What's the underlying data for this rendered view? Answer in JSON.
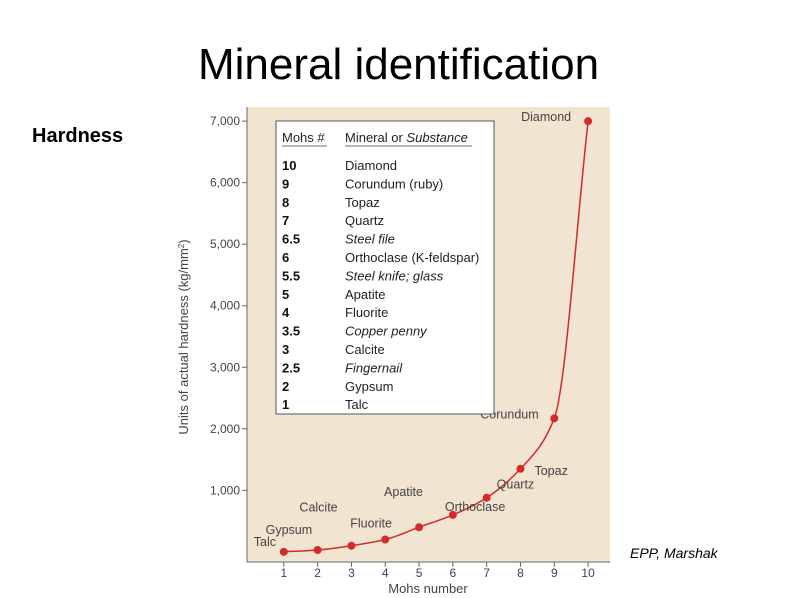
{
  "slide": {
    "title": "Mineral identification",
    "subtitle": "Hardness",
    "credit": "EPP, Marshak"
  },
  "chart_data": {
    "type": "line",
    "xlabel": "Mohs number",
    "ylabel": "Units of actual hardness (kg/mm",
    "ylabel_sup": "2",
    "ylabel_close": ")",
    "xlim": [
      0,
      10.5
    ],
    "ylim": [
      -100,
      7100
    ],
    "x_ticks": [
      "1",
      "2",
      "3",
      "4",
      "5",
      "6",
      "7",
      "8",
      "9",
      "10"
    ],
    "y_ticks": [
      {
        "v": 1000,
        "label": "1,000"
      },
      {
        "v": 2000,
        "label": "2,000"
      },
      {
        "v": 3000,
        "label": "3,000"
      },
      {
        "v": 4000,
        "label": "4,000"
      },
      {
        "v": 5000,
        "label": "5,000"
      },
      {
        "v": 6000,
        "label": "6,000"
      },
      {
        "v": 7000,
        "label": "7,000"
      }
    ],
    "points": [
      {
        "x": 1,
        "y": 0,
        "name": "Talc"
      },
      {
        "x": 2,
        "y": 30,
        "name": "Gypsum"
      },
      {
        "x": 3,
        "y": 100,
        "name": "Calcite"
      },
      {
        "x": 4,
        "y": 200,
        "name": "Fluorite"
      },
      {
        "x": 5,
        "y": 400,
        "name": "Apatite"
      },
      {
        "x": 6,
        "y": 600,
        "name": "Orthoclase"
      },
      {
        "x": 7,
        "y": 880,
        "name": "Quartz"
      },
      {
        "x": 8,
        "y": 1350,
        "name": "Topaz"
      },
      {
        "x": 9,
        "y": 2170,
        "name": "Corundum"
      },
      {
        "x": 10,
        "y": 7000,
        "name": "Diamond"
      }
    ],
    "colors": {
      "curve": "#d42a2a",
      "background": "#f1e4d0"
    },
    "table": {
      "header_mohs": "Mohs #",
      "header_mineral": "Mineral or ",
      "header_substance": "Substance",
      "rows": [
        {
          "mohs": "10",
          "name": "Diamond",
          "italic": false
        },
        {
          "mohs": "9",
          "name": "Corundum (ruby)",
          "italic": false
        },
        {
          "mohs": "8",
          "name": "Topaz",
          "italic": false
        },
        {
          "mohs": "7",
          "name": "Quartz",
          "italic": false
        },
        {
          "mohs": "6.5",
          "name": "Steel file",
          "italic": true
        },
        {
          "mohs": "6",
          "name": "Orthoclase (K-feldspar)",
          "italic": false
        },
        {
          "mohs": "5.5",
          "name": "Steel knife; glass",
          "italic": true
        },
        {
          "mohs": "5",
          "name": "Apatite",
          "italic": false
        },
        {
          "mohs": "4",
          "name": "Fluorite",
          "italic": false
        },
        {
          "mohs": "3.5",
          "name": "Copper penny",
          "italic": true
        },
        {
          "mohs": "3",
          "name": "Calcite",
          "italic": false
        },
        {
          "mohs": "2.5",
          "name": "Fingernail",
          "italic": true
        },
        {
          "mohs": "2",
          "name": "Gypsum",
          "italic": false
        },
        {
          "mohs": "1",
          "name": "Talc",
          "italic": false
        }
      ]
    }
  }
}
